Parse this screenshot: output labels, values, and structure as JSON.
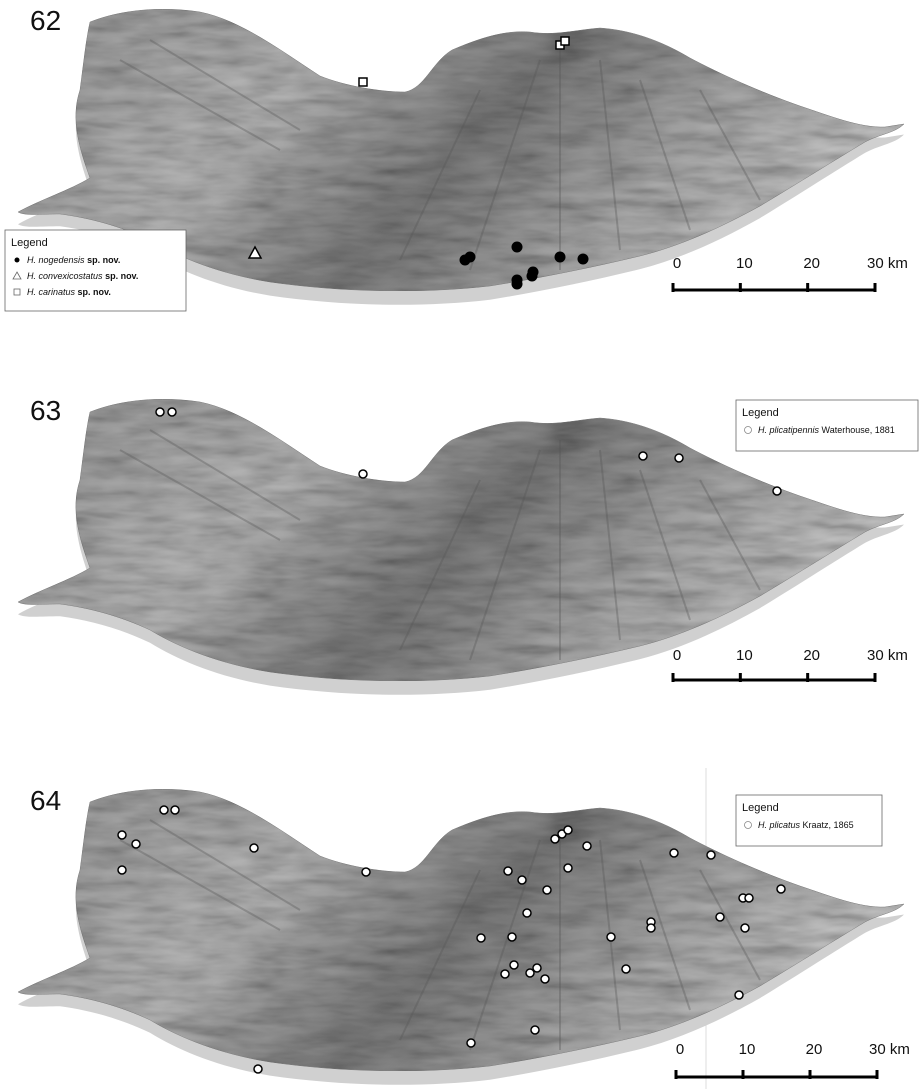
{
  "panels": [
    {
      "number": "62",
      "legend": {
        "title": "Legend",
        "entries": [
          {
            "name": "H. nogedensis",
            "note": "sp. nov."
          },
          {
            "name": "H. convexicostatus",
            "note": "sp. nov."
          },
          {
            "name": "H. carinatus",
            "note": "sp. nov."
          }
        ]
      },
      "scale": [
        "0",
        "10",
        "20",
        "30 km"
      ]
    },
    {
      "number": "63",
      "legend": {
        "title": "Legend",
        "entries": [
          {
            "name": "H. plicatipennis",
            "note": "Waterhouse, 1881"
          }
        ]
      },
      "scale": [
        "0",
        "10",
        "20",
        "30 km"
      ]
    },
    {
      "number": "64",
      "legend": {
        "title": "Legend",
        "entries": [
          {
            "name": "H. plicatus",
            "note": "Kraatz, 1865"
          }
        ]
      },
      "scale": [
        "0",
        "10",
        "20",
        "30 km"
      ]
    }
  ]
}
